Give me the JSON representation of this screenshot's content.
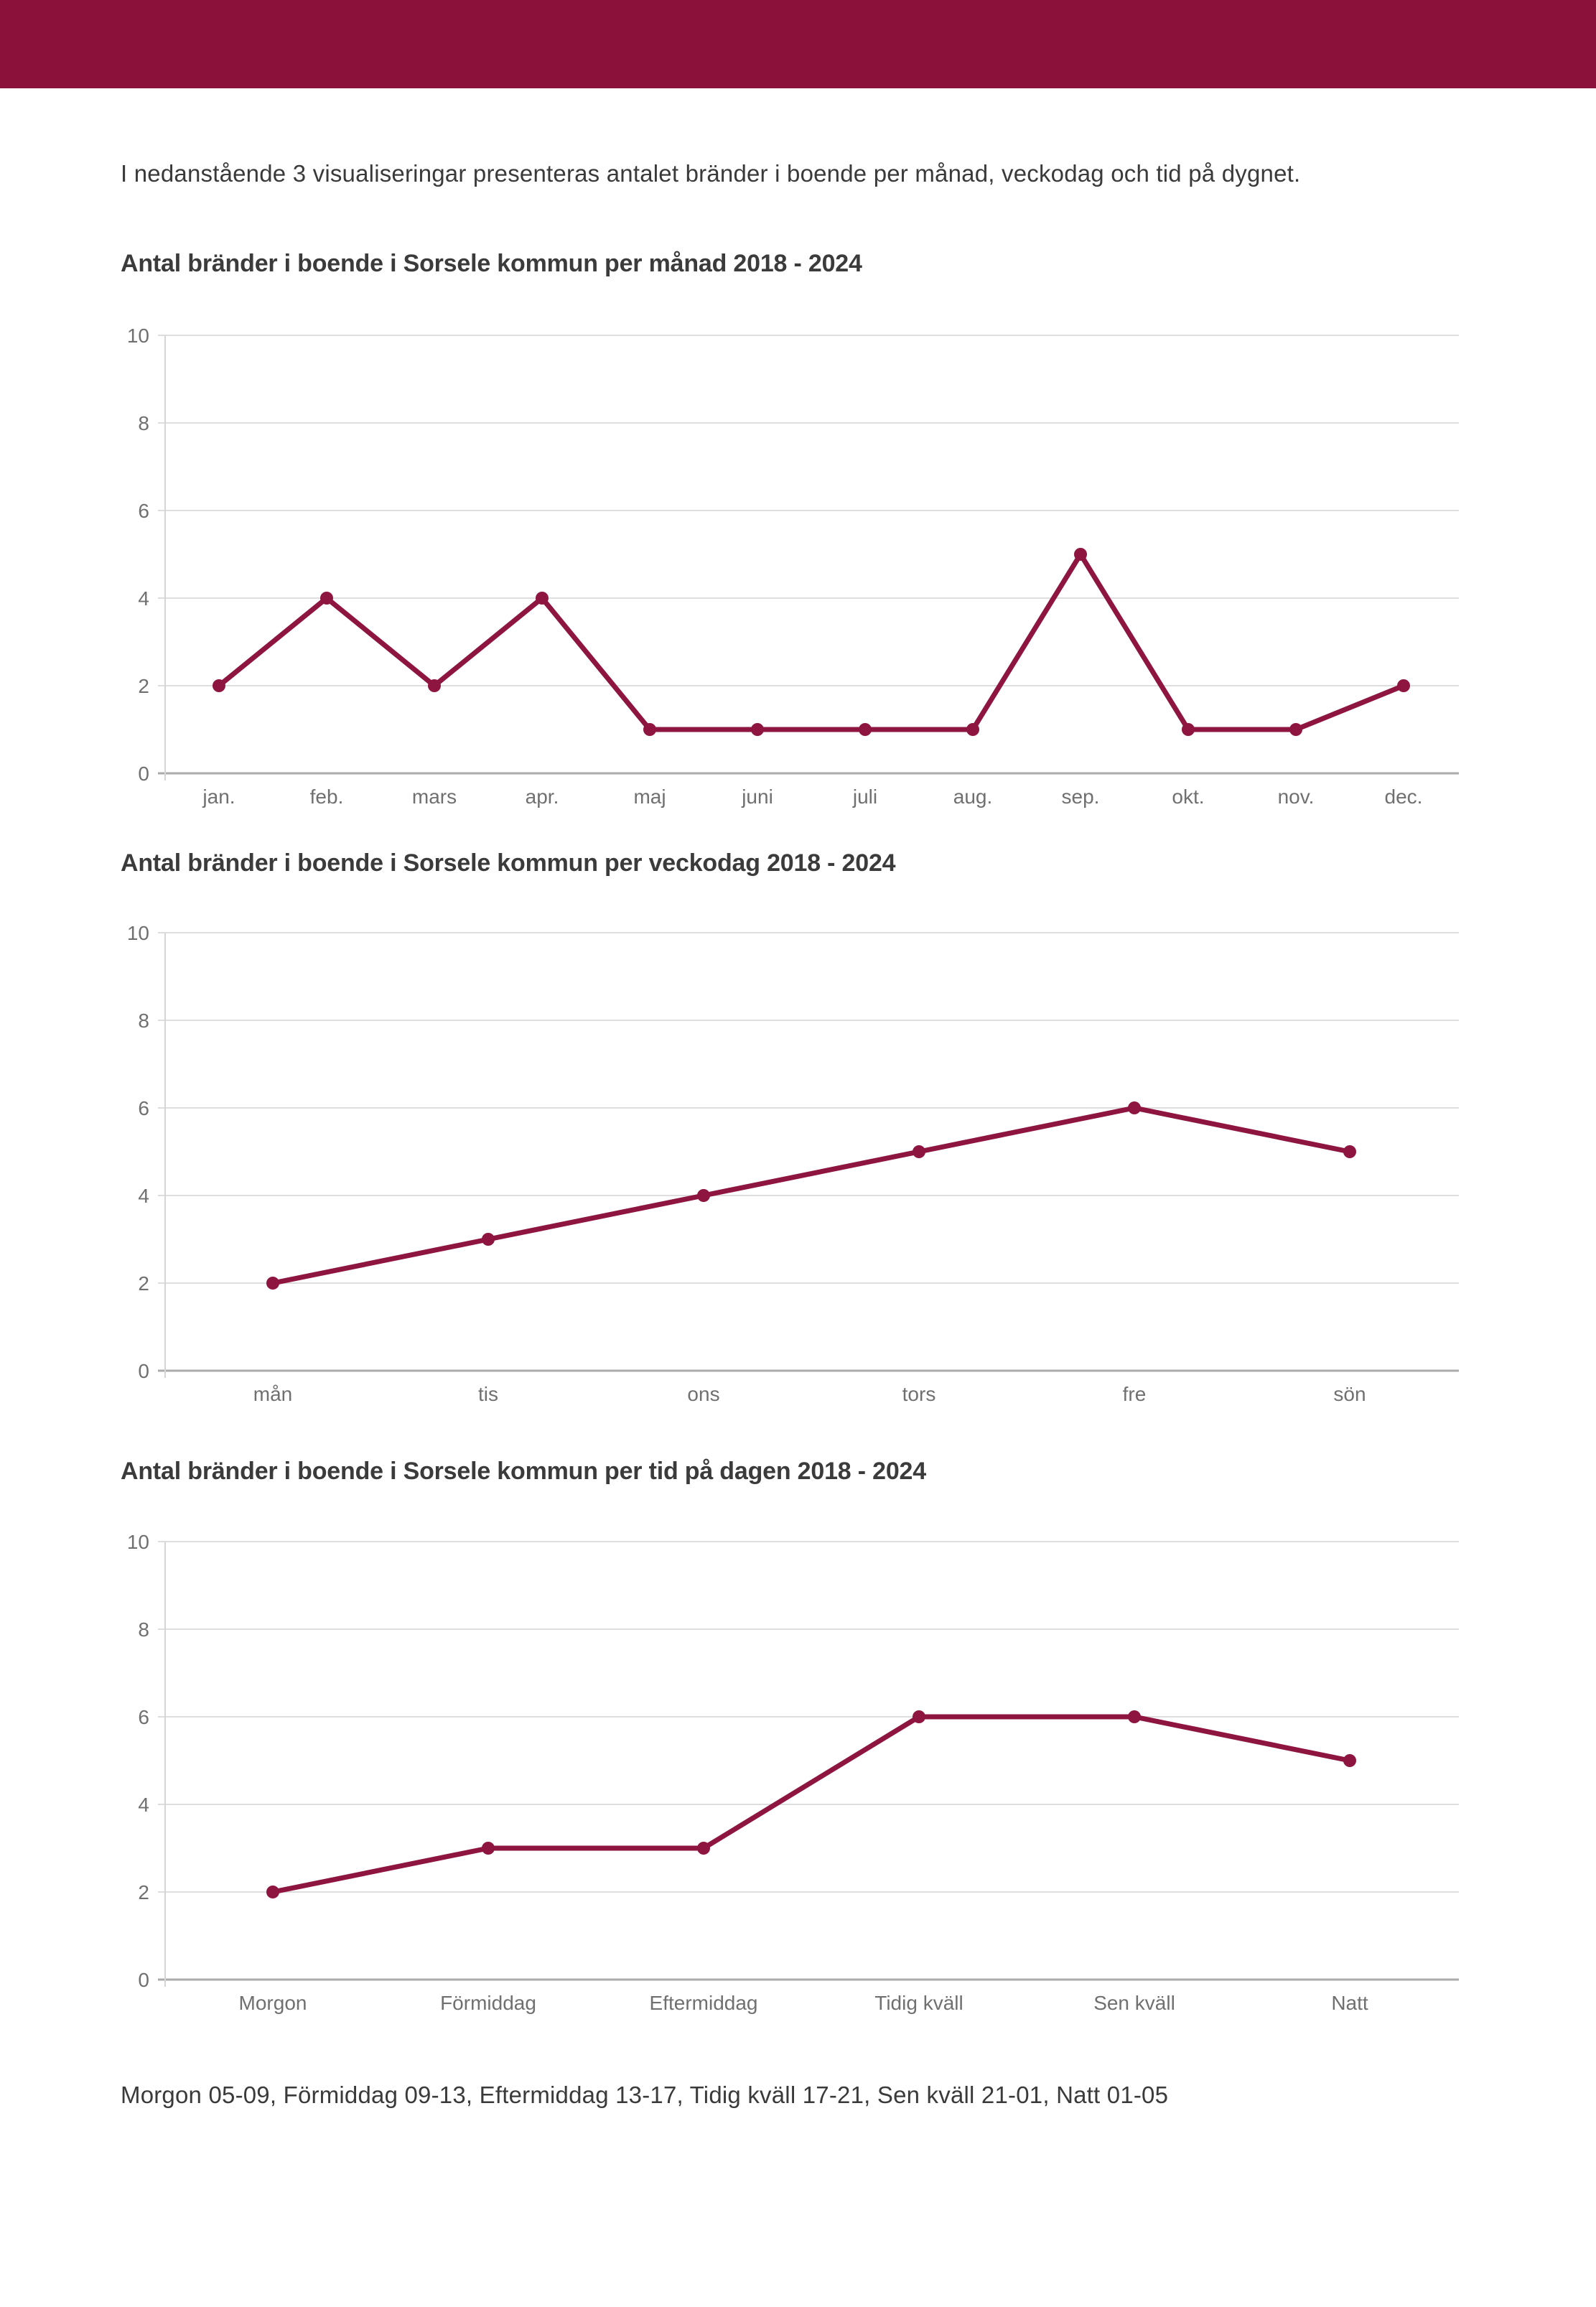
{
  "page": {
    "intro_text": "I nedanstående 3 visualiseringar presenteras antalet bränder i boende per månad, veckodag och tid på dygnet.",
    "footer_note": "Morgon 05-09, Förmiddag 09-13, Eftermiddag 13-17, Tidig kväll 17-21, Sen kväll 21-01, Natt 01-05"
  },
  "colors": {
    "header_bar": "#8B113B",
    "line": "#8E1540",
    "grid": "#dedede",
    "zero_axis": "#ababab",
    "y_axis_line": "#d6d6d6",
    "tick_label": "#707070",
    "text": "#3a3a3a"
  },
  "chart_data": [
    {
      "type": "line",
      "title": "Antal bränder i boende i Sorsele kommun per månad 2018 - 2024",
      "categories": [
        "jan.",
        "feb.",
        "mars",
        "apr.",
        "maj",
        "juni",
        "juli",
        "aug.",
        "sep.",
        "okt.",
        "nov.",
        "dec."
      ],
      "values": [
        2,
        4,
        2,
        4,
        1,
        1,
        1,
        1,
        5,
        1,
        1,
        2
      ],
      "xlabel": "",
      "ylabel": "",
      "ylim": [
        0,
        10
      ],
      "yticks": [
        0,
        2,
        4,
        6,
        8,
        10
      ],
      "grid": true,
      "legend": "none"
    },
    {
      "type": "line",
      "title": "Antal bränder i boende i Sorsele kommun per veckodag 2018 - 2024",
      "categories": [
        "mån",
        "tis",
        "ons",
        "tors",
        "fre",
        "sön"
      ],
      "values": [
        2,
        3,
        4,
        5,
        6,
        5
      ],
      "xlabel": "",
      "ylabel": "",
      "ylim": [
        0,
        10
      ],
      "yticks": [
        0,
        2,
        4,
        6,
        8,
        10
      ],
      "grid": true,
      "legend": "none"
    },
    {
      "type": "line",
      "title": "Antal bränder i boende i Sorsele kommun per tid på dagen 2018 - 2024",
      "categories": [
        "Morgon",
        "Förmiddag",
        "Eftermiddag",
        "Tidig kväll",
        "Sen kväll",
        "Natt"
      ],
      "values": [
        2,
        3,
        3,
        6,
        6,
        5
      ],
      "xlabel": "",
      "ylabel": "",
      "ylim": [
        0,
        10
      ],
      "yticks": [
        0,
        2,
        4,
        6,
        8,
        10
      ],
      "grid": true,
      "legend": "none"
    }
  ]
}
